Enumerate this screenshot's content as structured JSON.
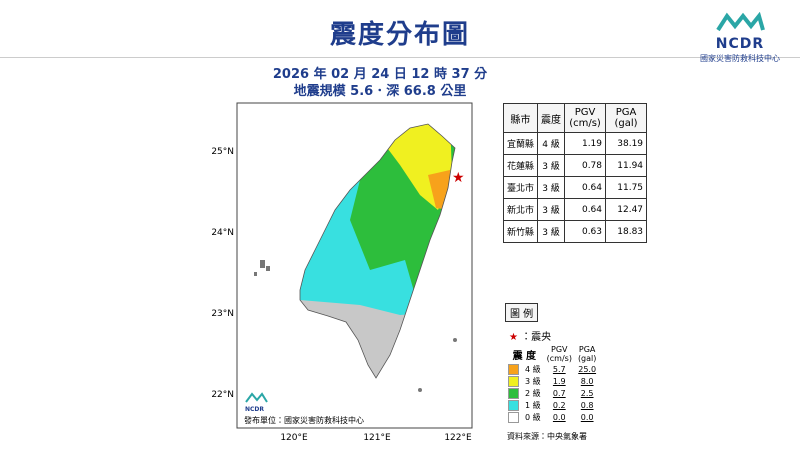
{
  "header": {
    "title": "震度分布圖",
    "logo_text": "NCDR",
    "org": "國家災害防救科技中心"
  },
  "event": {
    "datetime": "2026 年 02 月 24 日 12 時 37 分",
    "magnitude": "地震規模 5.6．深 66.8 公里"
  },
  "map": {
    "lat_labels": [
      "25°N",
      "24°N",
      "23°N",
      "22°N"
    ],
    "lon_labels": [
      "120°E",
      "121°E",
      "122°E"
    ],
    "logo_text": "NCDR",
    "publisher": "發布單位：國家災害防救科技中心"
  },
  "table": {
    "header": [
      "縣市",
      "震度",
      [
        "PGV",
        "(cm/s)"
      ],
      [
        "PGA",
        "(gal)"
      ]
    ],
    "rows": [
      [
        "宜蘭縣",
        "4 級",
        "1.19",
        "38.19"
      ],
      [
        "花蓮縣",
        "3 級",
        "0.78",
        "11.94"
      ],
      [
        "臺北市",
        "3 級",
        "0.64",
        "11.75"
      ],
      [
        "新北市",
        "3 級",
        "0.64",
        "12.47"
      ],
      [
        "新竹縣",
        "3 級",
        "0.63",
        "18.83"
      ]
    ]
  },
  "legend": {
    "title": "圖 例",
    "epicenter": "：震央",
    "header": [
      "震 度",
      [
        "PGV",
        "(cm/s)"
      ],
      [
        "PGA",
        "(gal)"
      ]
    ],
    "rows": [
      [
        "4 級",
        "5.7",
        "25.0"
      ],
      [
        "3 級",
        "1.9",
        "8.0"
      ],
      [
        "2 級",
        "0.7",
        "2.5"
      ],
      [
        "1 級",
        "0.2",
        "0.8"
      ],
      [
        "0 級",
        "0.0",
        "0.0"
      ]
    ]
  },
  "source": "資料來源：中央氣象署"
}
